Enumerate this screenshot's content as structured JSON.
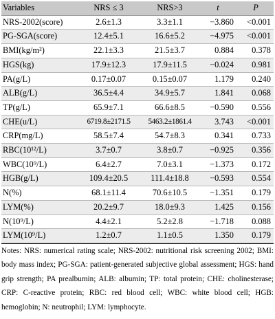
{
  "table": {
    "headers": {
      "variable": "Variables",
      "group1": "NRS ≤ 3",
      "group2": "NRS>3",
      "t": "t",
      "p": "P"
    },
    "rows": [
      {
        "variable": "NRS-2002(score)",
        "group1": "2.6±1.3",
        "group2": "3.3±1.1",
        "t": "−3.860",
        "p": "<0.001"
      },
      {
        "variable": "PG-SGA(score)",
        "group1": "12.4±5.1",
        "group2": "16.6±5.2",
        "t": "−4.975",
        "p": "<0.001"
      },
      {
        "variable": "BMI(kg/m²)",
        "group1": "22.1±3.3",
        "group2": "21.5±3.7",
        "t": "0.884",
        "p": "0.378"
      },
      {
        "variable": "HGS(kg)",
        "group1": "17.9±12.3",
        "group2": "17.9±11.5",
        "t": "−0.024",
        "p": "0.981"
      },
      {
        "variable": "PA(g/L)",
        "group1": "0.17±0.07",
        "group2": "0.15±0.07",
        "t": "1.179",
        "p": "0.240"
      },
      {
        "variable": "ALB(g/L)",
        "group1": "36.5±4.4",
        "group2": "34.9±5.7",
        "t": "1.841",
        "p": "0.068"
      },
      {
        "variable": "TP(g/L)",
        "group1": "65.9±7.1",
        "group2": "66.6±8.5",
        "t": "−0.590",
        "p": "0.556"
      },
      {
        "variable": "CHE(u/L)",
        "group1": "6719.8±2171.5",
        "group2": "5463.2±1861.4",
        "t": "3.743",
        "p": "<0.001"
      },
      {
        "variable": "CRP(mg/L)",
        "group1": "58.5±7.4",
        "group2": "54.7±8.3",
        "t": "0.341",
        "p": "0.733"
      },
      {
        "variable": "RBC(10¹²/L)",
        "group1": "3.7±0.7",
        "group2": "3.8±0.7",
        "t": "−0.925",
        "p": "0.356"
      },
      {
        "variable": "WBC(10⁹/L)",
        "group1": "6.4±2.7",
        "group2": "7.0±3.1",
        "t": "−1.373",
        "p": "0.172"
      },
      {
        "variable": "HGB(g/L)",
        "group1": "109.4±20.5",
        "group2": "111.4±18.8",
        "t": "−0.593",
        "p": "0.554"
      },
      {
        "variable": "N(%)",
        "group1": "68.1±11.4",
        "group2": "70.6±10.5",
        "t": "−1.351",
        "p": "0.179"
      },
      {
        "variable": "LYM(%)",
        "group1": "20.2±9.7",
        "group2": "18.0±9.3",
        "t": "1.425",
        "p": "0.156"
      },
      {
        "variable": "N(10⁹/L)",
        "group1": "4.4±2.1",
        "group2": "5.2±2.8",
        "t": "−1.718",
        "p": "0.088"
      },
      {
        "variable": "LYM(10⁹/L)",
        "group1": "1.2±0.7",
        "group2": "1.1±0.5",
        "t": "1.350",
        "p": "0.179"
      }
    ]
  },
  "notes": "Notes: NRS: numerical rating scale; NRS-2002: nutritional risk screening 2002; BMI: body mass index; PG-SGA: patient-generated subjective global assessment; HGS: hand grip strength; PA prealbumin; ALB: albumin; TP: total protein; CHE: cholinesterase; CRP: C-reactive protein; RBC: red blood cell; WBC: white blood cell; HGB: hemoglobin; N: neutrophil; LYM: lymphocyte."
}
